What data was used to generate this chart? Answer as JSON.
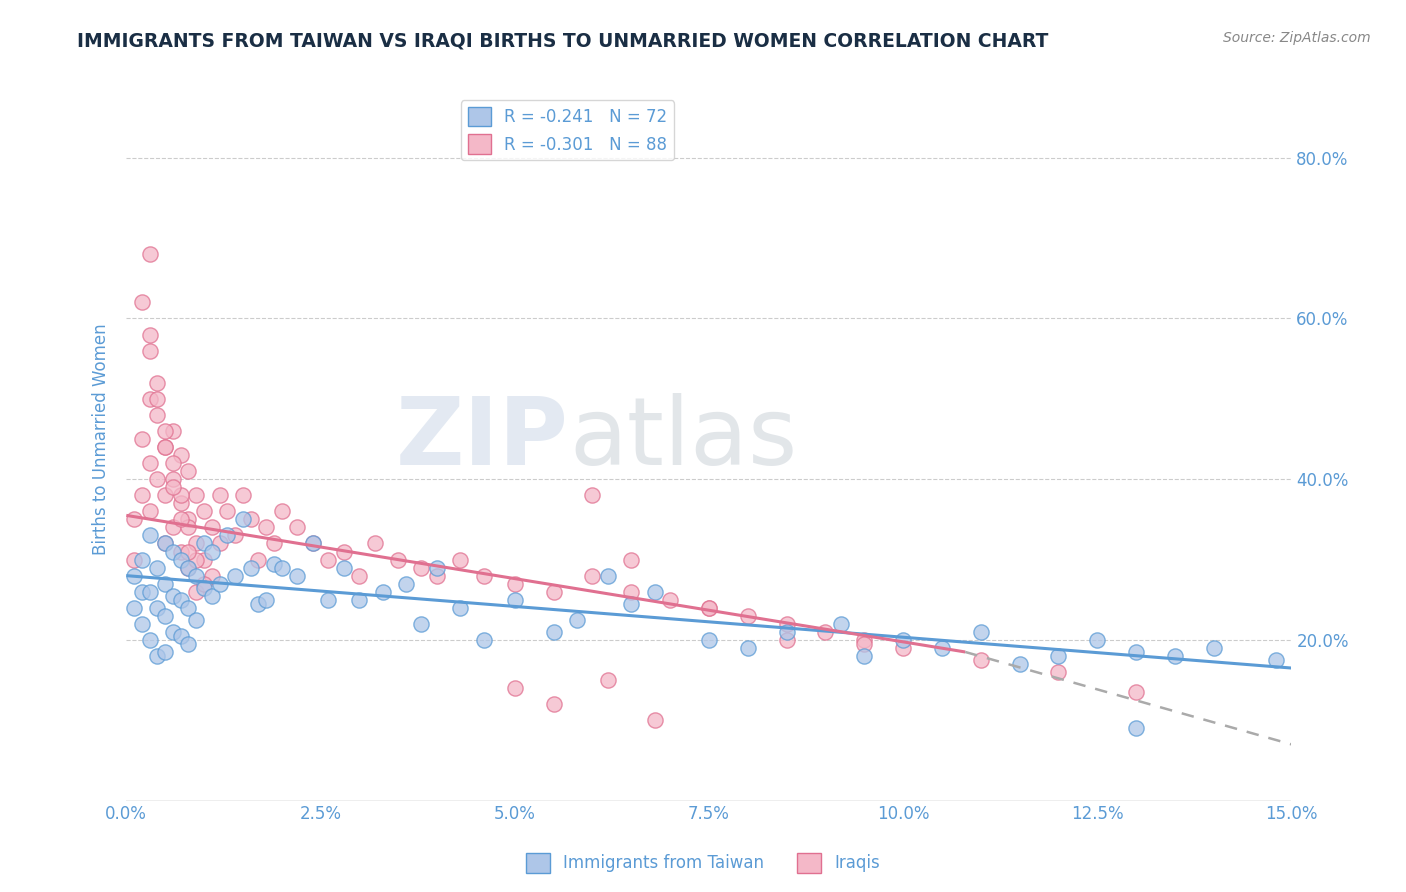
{
  "title": "IMMIGRANTS FROM TAIWAN VS IRAQI BIRTHS TO UNMARRIED WOMEN CORRELATION CHART",
  "source": "Source: ZipAtlas.com",
  "ylabel": "Births to Unmarried Women",
  "legend_top": [
    {
      "label": "R = -0.241   N = 72",
      "color_face": "#aec6e8",
      "color_edge": "#5b9bd5"
    },
    {
      "label": "R = -0.301   N = 88",
      "color_face": "#f4b8c8",
      "color_edge": "#e07090"
    }
  ],
  "legend_bottom": [
    {
      "label": "Immigrants from Taiwan",
      "color_face": "#aec6e8",
      "color_edge": "#5b9bd5"
    },
    {
      "label": "Iraqis",
      "color_face": "#f4b8c8",
      "color_edge": "#e07090"
    }
  ],
  "taiwan_color": "#5b9bd5",
  "taiwan_face": "#aec6e8",
  "iraqi_color": "#e07090",
  "iraqi_face": "#f4b8c8",
  "title_color": "#1a2e44",
  "axis_label_color": "#5b9bd5",
  "xlim": [
    0.0,
    0.15
  ],
  "ylim": [
    0.0,
    0.9
  ],
  "y_tick_positions": [
    0.2,
    0.4,
    0.6,
    0.8
  ],
  "y_tick_labels": [
    "20.0%",
    "40.0%",
    "60.0%",
    "80.0%"
  ],
  "x_tick_positions": [
    0.0,
    0.025,
    0.05,
    0.075,
    0.1,
    0.125,
    0.15
  ],
  "x_tick_labels": [
    "0.0%",
    "2.5%",
    "5.0%",
    "7.5%",
    "10.0%",
    "12.5%",
    "15.0%"
  ],
  "taiwan_line": {
    "x0": 0.0,
    "y0": 0.28,
    "x1": 0.15,
    "y1": 0.165
  },
  "iraqi_line_solid": {
    "x0": 0.0,
    "y0": 0.355,
    "x1": 0.108,
    "y1": 0.185
  },
  "iraqi_line_dashed": {
    "x0": 0.108,
    "y0": 0.185,
    "x1": 0.15,
    "y1": 0.07
  },
  "taiwan_scatter_x": [
    0.001,
    0.001,
    0.002,
    0.002,
    0.002,
    0.003,
    0.003,
    0.003,
    0.004,
    0.004,
    0.004,
    0.005,
    0.005,
    0.005,
    0.005,
    0.006,
    0.006,
    0.006,
    0.007,
    0.007,
    0.007,
    0.008,
    0.008,
    0.008,
    0.009,
    0.009,
    0.01,
    0.01,
    0.011,
    0.011,
    0.012,
    0.013,
    0.014,
    0.015,
    0.016,
    0.017,
    0.018,
    0.019,
    0.02,
    0.022,
    0.024,
    0.026,
    0.028,
    0.03,
    0.033,
    0.036,
    0.038,
    0.04,
    0.043,
    0.046,
    0.05,
    0.055,
    0.058,
    0.062,
    0.065,
    0.068,
    0.075,
    0.08,
    0.085,
    0.092,
    0.095,
    0.1,
    0.105,
    0.11,
    0.115,
    0.12,
    0.125,
    0.13,
    0.135,
    0.14,
    0.148,
    0.13
  ],
  "taiwan_scatter_y": [
    0.28,
    0.24,
    0.3,
    0.22,
    0.26,
    0.33,
    0.26,
    0.2,
    0.29,
    0.24,
    0.18,
    0.32,
    0.27,
    0.23,
    0.185,
    0.31,
    0.255,
    0.21,
    0.3,
    0.25,
    0.205,
    0.29,
    0.24,
    0.195,
    0.28,
    0.225,
    0.32,
    0.265,
    0.31,
    0.255,
    0.27,
    0.33,
    0.28,
    0.35,
    0.29,
    0.245,
    0.25,
    0.295,
    0.29,
    0.28,
    0.32,
    0.25,
    0.29,
    0.25,
    0.26,
    0.27,
    0.22,
    0.29,
    0.24,
    0.2,
    0.25,
    0.21,
    0.225,
    0.28,
    0.245,
    0.26,
    0.2,
    0.19,
    0.21,
    0.22,
    0.18,
    0.2,
    0.19,
    0.21,
    0.17,
    0.18,
    0.2,
    0.185,
    0.18,
    0.19,
    0.175,
    0.09
  ],
  "iraqi_scatter_x": [
    0.001,
    0.001,
    0.002,
    0.002,
    0.003,
    0.003,
    0.003,
    0.004,
    0.004,
    0.005,
    0.005,
    0.005,
    0.006,
    0.006,
    0.006,
    0.007,
    0.007,
    0.007,
    0.008,
    0.008,
    0.008,
    0.009,
    0.009,
    0.009,
    0.01,
    0.01,
    0.011,
    0.011,
    0.012,
    0.012,
    0.013,
    0.014,
    0.015,
    0.016,
    0.017,
    0.018,
    0.019,
    0.02,
    0.022,
    0.024,
    0.026,
    0.028,
    0.03,
    0.032,
    0.035,
    0.038,
    0.04,
    0.043,
    0.046,
    0.05,
    0.055,
    0.06,
    0.065,
    0.07,
    0.075,
    0.08,
    0.085,
    0.09,
    0.095,
    0.1,
    0.002,
    0.003,
    0.003,
    0.004,
    0.005,
    0.006,
    0.007,
    0.008,
    0.009,
    0.01,
    0.003,
    0.004,
    0.005,
    0.006,
    0.007,
    0.008,
    0.06,
    0.065,
    0.075,
    0.085,
    0.12,
    0.13,
    0.11,
    0.095,
    0.05,
    0.055,
    0.062,
    0.068
  ],
  "iraqi_scatter_y": [
    0.35,
    0.3,
    0.45,
    0.38,
    0.5,
    0.42,
    0.36,
    0.48,
    0.4,
    0.44,
    0.38,
    0.32,
    0.46,
    0.4,
    0.34,
    0.43,
    0.37,
    0.31,
    0.41,
    0.35,
    0.29,
    0.38,
    0.32,
    0.26,
    0.36,
    0.3,
    0.34,
    0.28,
    0.38,
    0.32,
    0.36,
    0.33,
    0.38,
    0.35,
    0.3,
    0.34,
    0.32,
    0.36,
    0.34,
    0.32,
    0.3,
    0.31,
    0.28,
    0.32,
    0.3,
    0.29,
    0.28,
    0.3,
    0.28,
    0.27,
    0.26,
    0.28,
    0.26,
    0.25,
    0.24,
    0.23,
    0.22,
    0.21,
    0.2,
    0.19,
    0.62,
    0.68,
    0.58,
    0.52,
    0.46,
    0.42,
    0.38,
    0.34,
    0.3,
    0.27,
    0.56,
    0.5,
    0.44,
    0.39,
    0.35,
    0.31,
    0.38,
    0.3,
    0.24,
    0.2,
    0.16,
    0.135,
    0.175,
    0.195,
    0.14,
    0.12,
    0.15,
    0.1
  ]
}
